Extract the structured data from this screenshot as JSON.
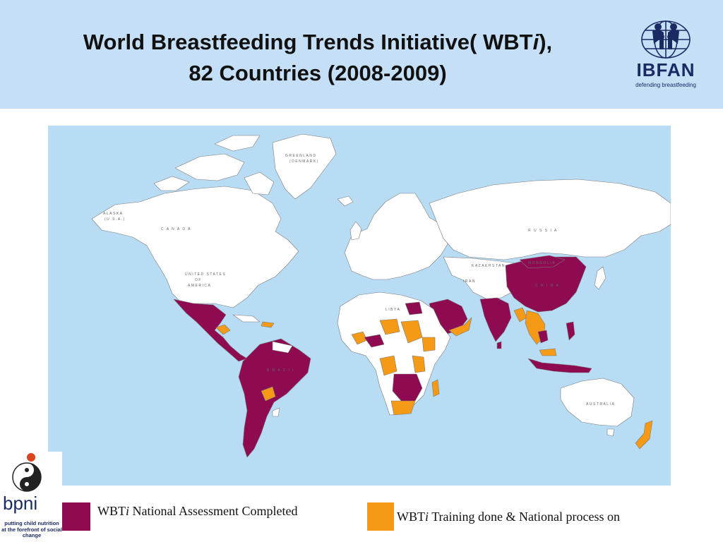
{
  "header": {
    "title_line1_pre": "World Breastfeeding Trends Initiative( WBT",
    "title_line1_italic": "i",
    "title_line1_post": "),",
    "title_line2": "82 Countries (2008-2009)"
  },
  "logos": {
    "ibfan": {
      "name": "IBFAN",
      "tagline": "defending breastfeeding",
      "color": "#1b2a63"
    },
    "bpni": {
      "name": "bpni",
      "tagline": "putting child nutrition at the forefront of social change"
    }
  },
  "map": {
    "ocean_color": "#b9dcf5",
    "land_color": "#ffffff",
    "labels": {
      "greenland": "GREENLAND",
      "denmark": "(DENMARK)",
      "alaska": "ALASKA",
      "usa_abbr": "(U.S.A.)",
      "canada": "C A N A D A",
      "usa1": "UNITED STATES",
      "usa2": "OF",
      "usa3": "AMERICA",
      "russia": "R U S S I A",
      "kazakhstan": "KAZAKHSTAN",
      "mongolia": "MONGOLIA",
      "china": "C H I N A",
      "brazil": "B R A Z I L",
      "libya": "LIBYA",
      "iran": "IRAN",
      "australia": "AUSTRALIA"
    }
  },
  "legend": {
    "items": [
      {
        "color": "#8e0b52",
        "pre": "WBT",
        "italic": "i",
        "post": " National Assessment Completed"
      },
      {
        "color": "#f49a17",
        "pre": "WBT",
        "italic": "i",
        "post": " Training done & National process on"
      }
    ]
  }
}
